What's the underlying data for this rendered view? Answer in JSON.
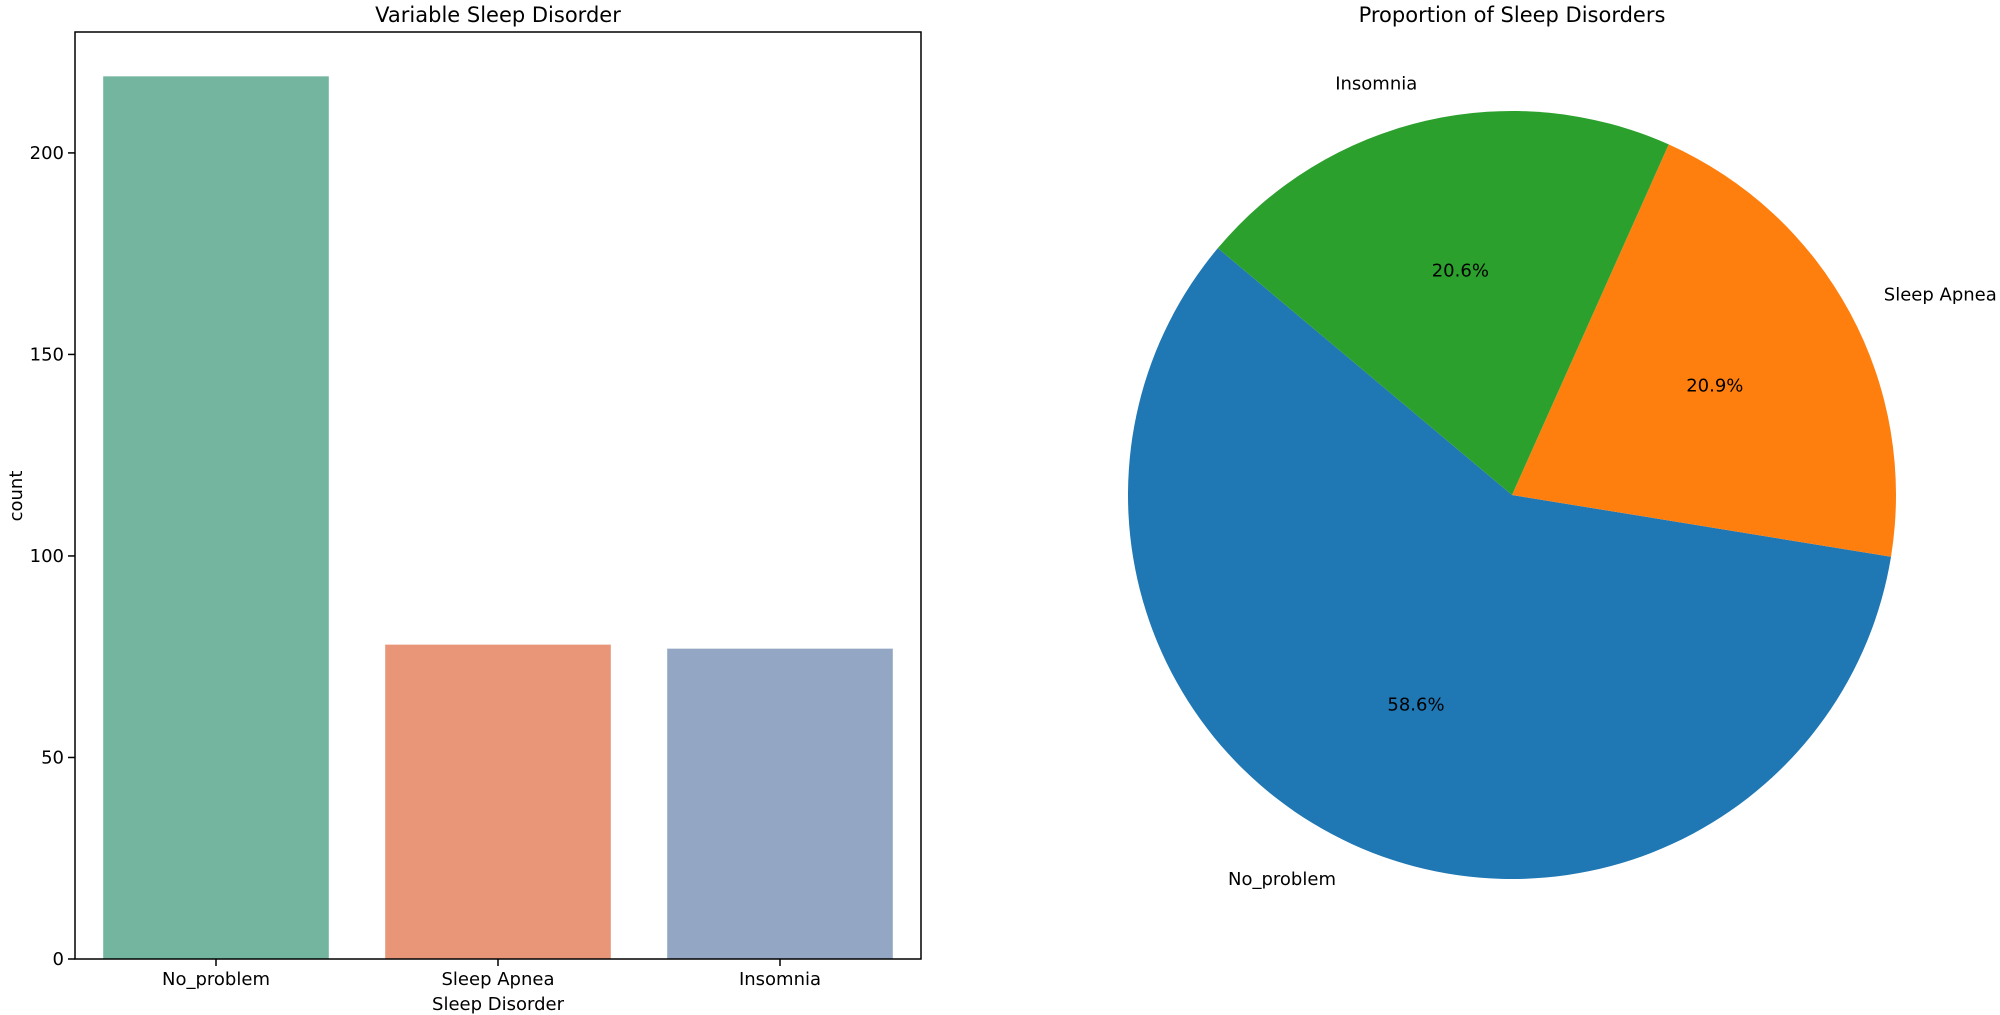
{
  "chart_data": [
    {
      "type": "bar",
      "title": "Variable Sleep Disorder",
      "xlabel": "Sleep Disorder",
      "ylabel": "count",
      "categories": [
        "No_problem",
        "Sleep Apnea",
        "Insomnia"
      ],
      "values": [
        219,
        78,
        77
      ],
      "colors": [
        "#73b59f",
        "#e89677",
        "#93a6c3"
      ],
      "ylim": [
        0,
        230
      ],
      "yticks": [
        0,
        50,
        100,
        150,
        200
      ],
      "grid": false
    },
    {
      "type": "pie",
      "title": "Proportion of Sleep Disorders",
      "labels": [
        "No_problem",
        "Sleep Apnea",
        "Insomnia"
      ],
      "values": [
        58.6,
        20.9,
        20.6
      ],
      "pct_labels": [
        "58.6%",
        "20.9%",
        "20.6%"
      ],
      "colors": [
        "#1f77b4",
        "#ff7f0e",
        "#2ca02c"
      ]
    }
  ]
}
